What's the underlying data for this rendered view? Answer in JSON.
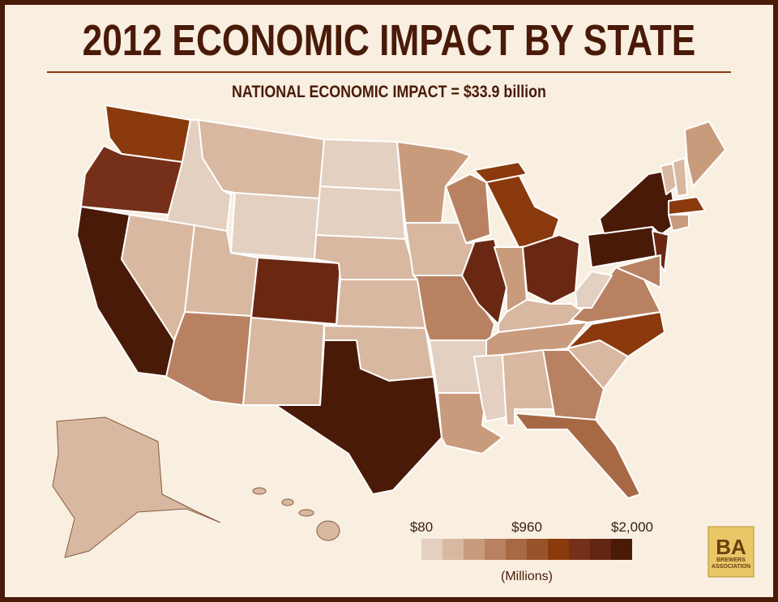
{
  "header": {
    "title": "2012 ECONOMIC IMPACT BY STATE",
    "subtitle": "NATIONAL ECONOMIC IMPACT = $33.9 billion"
  },
  "legend": {
    "ticks": [
      {
        "value": 80,
        "label": "$80"
      },
      {
        "value": 960,
        "label": "$960"
      },
      {
        "value": 2000,
        "label": "$2,000"
      }
    ],
    "unit": "(Millions)",
    "colors": [
      "#e4d0c1",
      "#d8b8a0",
      "#c99b7d",
      "#b88262",
      "#a66944",
      "#98532a",
      "#8a3a0c",
      "#76301a",
      "#622512",
      "#4a1a08"
    ]
  },
  "logo": {
    "mark": "BA",
    "name": "BREWERS ASSOCIATION"
  }
}
